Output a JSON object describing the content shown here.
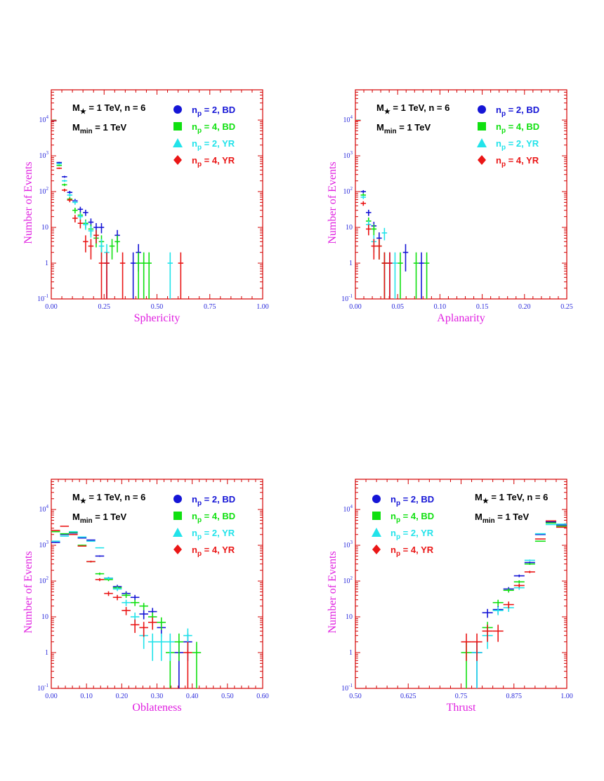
{
  "colors": {
    "frame": "#d40000",
    "tick_text": "#2a2adb",
    "axis_title": "#e020e0",
    "annotation": "#000000",
    "series": [
      "#1515d6",
      "#10e010",
      "#22e3ea",
      "#ea1616"
    ]
  },
  "chart_data": [
    {
      "type": "histogram",
      "panel": "sphericity",
      "title": "",
      "xlabel": "Sphericity",
      "ylabel": "Number of Events",
      "scale": "log",
      "xlim": [
        0,
        1
      ],
      "ylim": [
        0.1,
        70000
      ],
      "xticks": [
        "0.00",
        "0.25",
        "0.50",
        "0.75",
        "1.00"
      ],
      "legend_position": "top-right",
      "annotation": {
        "mstar_main": "M",
        "mstar_sub": "★",
        "mstar_rest": " = 1 TeV, n = 6",
        "mmin_main": "M",
        "mmin_sub": "min",
        "mmin_rest": " = 1 TeV"
      },
      "series": [
        {
          "name": "n",
          "name_sub": "p",
          "name_rest": " = 2, BD",
          "marker": "circle",
          "bin": 0.025,
          "x": [
            0.0125,
            0.0375,
            0.0625,
            0.0875,
            0.1125,
            0.1375,
            0.1625,
            0.1875,
            0.2125,
            0.2375,
            0.2625,
            0.3125,
            0.3875,
            0.4125
          ],
          "y": [
            9500,
            650,
            260,
            95,
            55,
            32,
            26,
            14,
            10,
            10,
            1,
            6,
            1,
            2
          ]
        },
        {
          "name": "n",
          "name_sub": "p",
          "name_rest": " = 4, BD",
          "marker": "square",
          "bin": 0.025,
          "x": [
            0.0125,
            0.0375,
            0.0625,
            0.0875,
            0.1125,
            0.1375,
            0.1625,
            0.1875,
            0.2125,
            0.2375,
            0.2875,
            0.3125,
            0.4125,
            0.4375,
            0.4625
          ],
          "y": [
            9800,
            540,
            155,
            62,
            30,
            22,
            13,
            9,
            5,
            4,
            3,
            4,
            1,
            1,
            1
          ]
        },
        {
          "name": "n",
          "name_sub": "p",
          "name_rest": " = 2, YR",
          "marker": "triangle",
          "bin": 0.025,
          "x": [
            0.0125,
            0.0375,
            0.0625,
            0.0875,
            0.1125,
            0.1375,
            0.1625,
            0.1875,
            0.2125,
            0.2375,
            0.2625,
            0.5625
          ],
          "y": [
            9700,
            600,
            200,
            80,
            50,
            20,
            12,
            8,
            6,
            3,
            2,
            1
          ]
        },
        {
          "name": "n",
          "name_sub": "p",
          "name_rest": " = 4, YR",
          "marker": "diamond",
          "bin": 0.025,
          "x": [
            0.0125,
            0.0375,
            0.0625,
            0.0875,
            0.1125,
            0.1375,
            0.1625,
            0.1875,
            0.2125,
            0.2375,
            0.2625,
            0.3375,
            0.6125
          ],
          "y": [
            9600,
            450,
            110,
            58,
            18,
            13,
            4,
            3,
            6,
            1,
            1,
            1,
            1
          ]
        }
      ]
    },
    {
      "type": "histogram",
      "panel": "aplanarity",
      "title": "",
      "xlabel": "Aplanarity",
      "ylabel": "Number of Events",
      "scale": "log",
      "xlim": [
        0,
        0.25
      ],
      "ylim": [
        0.1,
        70000
      ],
      "xticks": [
        "0.00",
        "0.05",
        "0.10",
        "0.15",
        "0.20",
        "0.25"
      ],
      "legend_position": "top-right",
      "annotation": {
        "mstar_main": "M",
        "mstar_sub": "★",
        "mstar_rest": " = 1 TeV, n = 6",
        "mmin_main": "M",
        "mmin_sub": "min",
        "mmin_rest": " = 1 TeV"
      },
      "series": [
        {
          "name": "n",
          "name_sub": "p",
          "name_rest": " = 2, BD",
          "marker": "circle",
          "bin": 0.00625,
          "x": [
            0.003125,
            0.009375,
            0.015625,
            0.021875,
            0.028125,
            0.034375,
            0.040625,
            0.059375,
            0.078125
          ],
          "y": [
            9800,
            100,
            26,
            11,
            5,
            1,
            1,
            2,
            1
          ]
        },
        {
          "name": "n",
          "name_sub": "p",
          "name_rest": " = 4, BD",
          "marker": "square",
          "bin": 0.00625,
          "x": [
            0.003125,
            0.009375,
            0.015625,
            0.021875,
            0.028125,
            0.034375,
            0.053125,
            0.071875,
            0.084375
          ],
          "y": [
            9900,
            80,
            15,
            9,
            3,
            1,
            1,
            1,
            1
          ]
        },
        {
          "name": "n",
          "name_sub": "p",
          "name_rest": " = 2, YR",
          "marker": "triangle",
          "bin": 0.00625,
          "x": [
            0.003125,
            0.009375,
            0.015625,
            0.021875,
            0.034375,
            0.046875
          ],
          "y": [
            9850,
            70,
            12,
            4,
            7,
            1
          ]
        },
        {
          "name": "n",
          "name_sub": "p",
          "name_rest": " = 4, YR",
          "marker": "diamond",
          "bin": 0.00625,
          "x": [
            0.003125,
            0.009375,
            0.015625,
            0.021875,
            0.028125,
            0.034375,
            0.040625
          ],
          "y": [
            9700,
            47,
            9,
            3,
            3,
            1,
            1
          ]
        }
      ]
    },
    {
      "type": "histogram",
      "panel": "oblateness",
      "title": "",
      "xlabel": "Oblateness",
      "ylabel": "Number of Events",
      "scale": "log",
      "xlim": [
        0,
        0.6
      ],
      "ylim": [
        0.1,
        70000
      ],
      "xticks": [
        "0.00",
        "0.10",
        "0.20",
        "0.30",
        "0.40",
        "0.50",
        "0.60"
      ],
      "legend_position": "top-right",
      "annotation": {
        "mstar_main": "M",
        "mstar_sub": "★",
        "mstar_rest": " = 1 TeV, n = 6",
        "mmin_main": "M",
        "mmin_sub": "min",
        "mmin_rest": " = 1 TeV"
      },
      "series": [
        {
          "name": "n",
          "name_sub": "p",
          "name_rest": " = 2, BD",
          "marker": "circle",
          "bin": 0.025,
          "x": [
            0.0125,
            0.0375,
            0.0625,
            0.0875,
            0.1125,
            0.1375,
            0.1625,
            0.1875,
            0.2125,
            0.2375,
            0.2625,
            0.2875,
            0.3125,
            0.3625,
            0.3875
          ],
          "y": [
            1200,
            2000,
            2200,
            1600,
            1400,
            500,
            120,
            70,
            45,
            35,
            12,
            14,
            5,
            1,
            2
          ]
        },
        {
          "name": "n",
          "name_sub": "p",
          "name_rest": " = 4, BD",
          "marker": "square",
          "bin": 0.025,
          "x": [
            0.0125,
            0.0375,
            0.0625,
            0.0875,
            0.1125,
            0.1375,
            0.1625,
            0.1875,
            0.2125,
            0.2375,
            0.2625,
            0.2875,
            0.3125,
            0.3375,
            0.3625,
            0.4125
          ],
          "y": [
            2400,
            2100,
            2300,
            1000,
            350,
            160,
            110,
            65,
            40,
            25,
            20,
            10,
            7,
            1,
            2,
            1
          ]
        },
        {
          "name": "n",
          "name_sub": "p",
          "name_rest": " = 2, YR",
          "marker": "triangle",
          "bin": 0.025,
          "x": [
            0.0125,
            0.0375,
            0.0625,
            0.0875,
            0.1125,
            0.1375,
            0.1625,
            0.1875,
            0.2125,
            0.2375,
            0.2625,
            0.2875,
            0.3125,
            0.3375,
            0.3875
          ],
          "y": [
            1300,
            1800,
            2400,
            1700,
            1300,
            850,
            120,
            60,
            25,
            10,
            3,
            2,
            2,
            2,
            3
          ]
        },
        {
          "name": "n",
          "name_sub": "p",
          "name_rest": " = 4, YR",
          "marker": "diamond",
          "bin": 0.025,
          "x": [
            0.0125,
            0.0375,
            0.0625,
            0.0875,
            0.1125,
            0.1375,
            0.1625,
            0.1875,
            0.2125,
            0.2375,
            0.2625,
            0.2875,
            0.3875
          ],
          "y": [
            2600,
            3400,
            2000,
            950,
            350,
            110,
            45,
            35,
            15,
            6,
            5,
            7,
            1
          ]
        }
      ]
    },
    {
      "type": "histogram",
      "panel": "thrust",
      "title": "",
      "xlabel": "Thrust",
      "ylabel": "Number of Events",
      "scale": "log",
      "xlim": [
        0.5,
        1.0
      ],
      "ylim": [
        0.1,
        70000
      ],
      "xticks": [
        "0.50",
        "0.625",
        "0.75",
        "0.875",
        "1.00"
      ],
      "legend_position": "top-left",
      "annotation": {
        "mstar_main": "M",
        "mstar_sub": "★",
        "mstar_rest": " = 1 TeV, n = 6",
        "mmin_main": "M",
        "mmin_sub": "min",
        "mmin_rest": " = 1 TeV"
      },
      "series": [
        {
          "name": "n",
          "name_sub": "p",
          "name_rest": " = 2, BD",
          "marker": "circle",
          "bin": 0.025,
          "x": [
            0.7875,
            0.8125,
            0.8375,
            0.8625,
            0.8875,
            0.9125,
            0.9375,
            0.9625,
            0.9875
          ],
          "y": [
            1,
            13,
            16,
            60,
            140,
            330,
            2000,
            4500,
            3700
          ]
        },
        {
          "name": "n",
          "name_sub": "p",
          "name_rest": " = 4, BD",
          "marker": "square",
          "bin": 0.025,
          "x": [
            0.7625,
            0.8125,
            0.8375,
            0.8625,
            0.8875,
            0.9125,
            0.9375,
            0.9625,
            0.9875
          ],
          "y": [
            1,
            5,
            25,
            55,
            95,
            300,
            1300,
            4200,
            3400
          ]
        },
        {
          "name": "n",
          "name_sub": "p",
          "name_rest": " = 2, YR",
          "marker": "triangle",
          "bin": 0.025,
          "x": [
            0.7875,
            0.8125,
            0.8375,
            0.8625,
            0.8875,
            0.9125,
            0.9375,
            0.9625,
            0.9875
          ],
          "y": [
            1,
            3,
            15,
            18,
            65,
            380,
            2100,
            3800,
            3900
          ]
        },
        {
          "name": "n",
          "name_sub": "p",
          "name_rest": " = 4, YR",
          "marker": "diamond",
          "bin": 0.025,
          "x": [
            0.7625,
            0.7875,
            0.8125,
            0.8375,
            0.8625,
            0.8875,
            0.9125,
            0.9375,
            0.9625,
            0.9875
          ],
          "y": [
            2,
            2,
            4,
            4,
            22,
            75,
            180,
            1500,
            4800,
            3200
          ]
        }
      ]
    }
  ]
}
